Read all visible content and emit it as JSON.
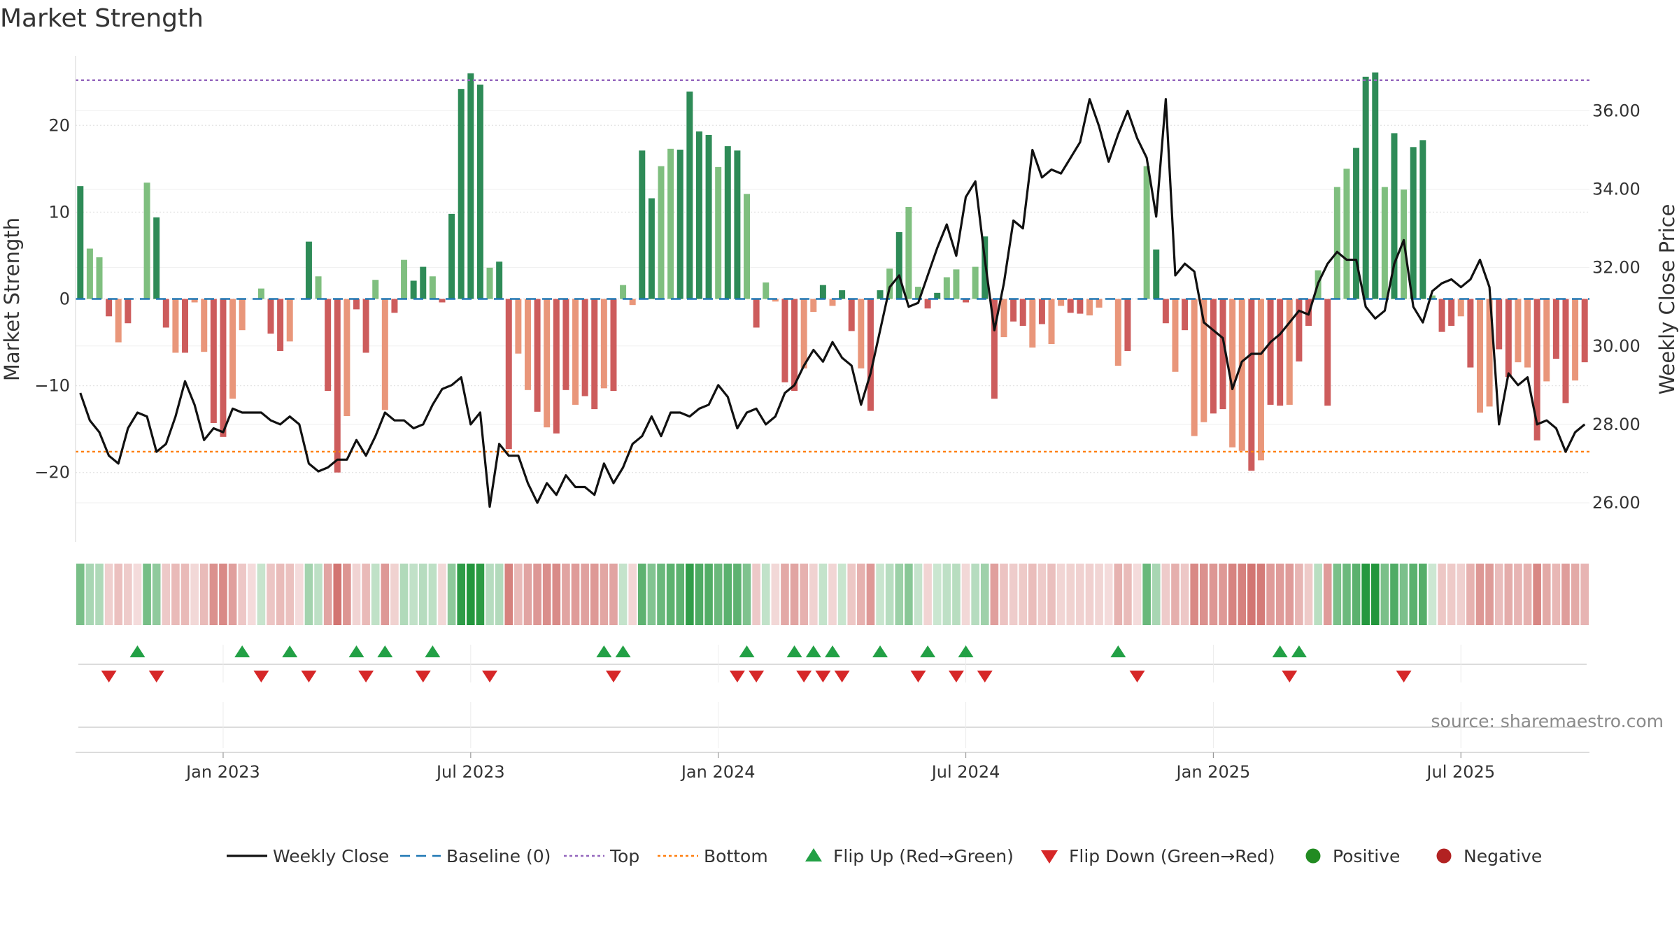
{
  "chart_data": {
    "type": "bar",
    "title": "Market Strength",
    "ylabel": "Market Strength",
    "y2label": "Weekly Close Price",
    "source": "source: sharemaestro.com",
    "ylim": [
      -28,
      28
    ],
    "y2lim": [
      25.0,
      37.4
    ],
    "y_ticks": [
      -20,
      -10,
      0,
      10,
      20
    ],
    "y2_ticks": [
      26.0,
      28.0,
      30.0,
      32.0,
      34.0,
      36.0
    ],
    "y2_tick_labels": [
      "26.00",
      "28.00",
      "30.00",
      "32.00",
      "34.00",
      "36.00"
    ],
    "top_level": 25.2,
    "bottom_level": -17.6,
    "x_ticks": [
      {
        "index": 15,
        "label": "Jan 2023"
      },
      {
        "index": 41,
        "label": "Jul 2023"
      },
      {
        "index": 67,
        "label": "Jan 2024"
      },
      {
        "index": 93,
        "label": "Jul 2024"
      },
      {
        "index": 119,
        "label": "Jan 2025"
      },
      {
        "index": 145,
        "label": "Jul 2025"
      }
    ],
    "colors": {
      "strong_green": "#2e8b57",
      "light_green": "#7fbf7f",
      "strong_red": "#cd5c5c",
      "light_red": "#e9967a",
      "price": "#111111",
      "baseline": "#1f77b4",
      "top": "#9467bd",
      "bottom": "#ff7f0e",
      "flip_up": "#22a045",
      "flip_down": "#d62728",
      "positive": "#228b22",
      "negative": "#b22222"
    },
    "strength": [
      13,
      5.8,
      4.8,
      -2,
      -5,
      -2.8,
      0,
      13.4,
      9.4,
      -3.3,
      -6.2,
      -6.2,
      -0.4,
      -6.1,
      -14.3,
      -15.9,
      -11.5,
      -3.6,
      0,
      1.2,
      -4,
      -6,
      -4.9,
      0,
      6.6,
      2.6,
      -10.6,
      -20,
      -13.5,
      -1.2,
      -6.2,
      2.2,
      -12.8,
      -1.6,
      4.5,
      2.1,
      3.7,
      2.6,
      -0.4,
      9.8,
      24.2,
      26,
      24.7,
      3.6,
      4.3,
      -17.3,
      -6.3,
      -10.5,
      -13,
      -14.8,
      -15.5,
      -10.5,
      -12.2,
      -11.2,
      -12.7,
      -10.3,
      -10.6,
      1.6,
      -0.7,
      17.1,
      11.6,
      15.3,
      17.3,
      17.2,
      23.9,
      19.3,
      18.9,
      15.2,
      17.6,
      17.1,
      12.1,
      -3.3,
      1.9,
      -0.3,
      -9.6,
      -10.6,
      -8,
      -1.5,
      1.6,
      -0.8,
      1,
      -3.7,
      -8,
      -12.9,
      1,
      3.5,
      7.7,
      10.6,
      1.4,
      -1.1,
      0.7,
      2.5,
      3.4,
      -0.4,
      3.7,
      7.2,
      -11.5,
      -4.4,
      -2.6,
      -3.1,
      -5.6,
      -2.9,
      -5.2,
      -0.8,
      -1.6,
      -1.7,
      -1.9,
      -1,
      0,
      -7.7,
      -6,
      0,
      15.3,
      5.7,
      -2.8,
      -8.4,
      -3.6,
      -15.8,
      -14.2,
      -13.2,
      -12.7,
      -17.1,
      -17.5,
      -19.8,
      -18.6,
      -12.2,
      -12.3,
      -12.2,
      -7.2,
      -3.1,
      3.3,
      -12.3,
      12.9,
      15,
      17.4,
      25.6,
      26.1,
      12.9,
      19.1,
      12.6,
      17.5,
      18.3,
      0.4,
      -3.8,
      -3.1,
      -2,
      -7.9,
      -13.1,
      -12.4,
      -5.8,
      -9,
      -7.3,
      -7.9,
      -16.3,
      -9.5,
      -6.9,
      -12,
      -9.4,
      -7.3
    ],
    "close": [
      28.8,
      28.1,
      27.8,
      27.2,
      27.0,
      27.9,
      28.3,
      28.2,
      27.3,
      27.5,
      28.2,
      29.1,
      28.5,
      27.6,
      27.9,
      27.8,
      28.4,
      28.3,
      28.3,
      28.3,
      28.1,
      28.0,
      28.2,
      28.0,
      27.0,
      26.8,
      26.9,
      27.1,
      27.1,
      27.6,
      27.2,
      27.7,
      28.3,
      28.1,
      28.1,
      27.9,
      28.0,
      28.5,
      28.9,
      29.0,
      29.2,
      28.0,
      28.3,
      25.9,
      27.5,
      27.2,
      27.2,
      26.5,
      26.0,
      26.5,
      26.2,
      26.7,
      26.4,
      26.4,
      26.2,
      27.0,
      26.5,
      26.9,
      27.5,
      27.7,
      28.2,
      27.7,
      28.3,
      28.3,
      28.2,
      28.4,
      28.5,
      29.0,
      28.7,
      27.9,
      28.3,
      28.4,
      28.0,
      28.2,
      28.8,
      29.0,
      29.5,
      29.9,
      29.6,
      30.1,
      29.7,
      29.5,
      28.5,
      29.3,
      30.4,
      31.5,
      31.8,
      31.0,
      31.1,
      31.8,
      32.5,
      33.1,
      32.3,
      33.8,
      34.2,
      32.2,
      30.4,
      31.6,
      33.2,
      33.0,
      35.0,
      34.3,
      34.5,
      34.4,
      34.8,
      35.2,
      36.3,
      35.6,
      34.7,
      35.4,
      36.0,
      35.3,
      34.8,
      33.3,
      36.3,
      31.8,
      32.1,
      31.9,
      30.6,
      30.4,
      30.2,
      28.9,
      29.6,
      29.8,
      29.8,
      30.1,
      30.3,
      30.6,
      30.9,
      30.8,
      31.6,
      32.1,
      32.4,
      32.2,
      32.2,
      31.0,
      30.7,
      30.9,
      32.1,
      32.7,
      31.0,
      30.6,
      31.4,
      31.6,
      31.7,
      31.5,
      31.7,
      32.2,
      31.5,
      28.0,
      29.3,
      29.0,
      29.2,
      28.0,
      28.1,
      27.9,
      27.3,
      27.8,
      28.0
    ],
    "flip_up_indices": [
      6,
      17,
      22,
      29,
      32,
      37,
      55,
      57,
      70,
      75,
      77,
      79,
      84,
      89,
      93,
      109,
      126,
      128
    ],
    "flip_down_indices": [
      3,
      8,
      19,
      24,
      30,
      36,
      43,
      56,
      69,
      71,
      76,
      78,
      80,
      88,
      92,
      95,
      111,
      127,
      139
    ],
    "legend": [
      {
        "label": "Weekly Close",
        "marker": "line"
      },
      {
        "label": "Baseline (0)",
        "marker": "dash"
      },
      {
        "label": "Top",
        "marker": "dot"
      },
      {
        "label": "Bottom",
        "marker": "dot"
      },
      {
        "label": "Flip Up (Red→Green)",
        "marker": "tri-up"
      },
      {
        "label": "Flip Down (Green→Red)",
        "marker": "tri-down"
      },
      {
        "label": "Positive",
        "marker": "circle"
      },
      {
        "label": "Negative",
        "marker": "circle"
      }
    ]
  }
}
